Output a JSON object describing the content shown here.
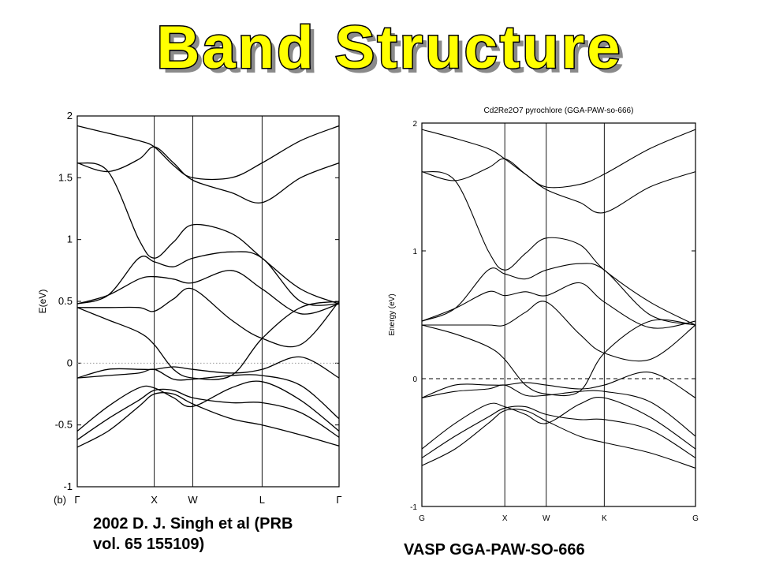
{
  "title": "Band Structure",
  "captions": {
    "left_line1": "2002 D. J. Singh et al (PRB",
    "left_line2": "vol. 65 155109)",
    "right": "VASP GGA-PAW-SO-666"
  },
  "colors": {
    "title_fill": "#ffff00",
    "title_stroke": "#000000",
    "title_shadow": "#8a8a8a",
    "band_line": "#000000"
  },
  "chart_data": [
    {
      "type": "line",
      "panel_label": "(b)",
      "title": "",
      "xlabel": "",
      "ylabel": "E(eV)",
      "ylim": [
        -1,
        2
      ],
      "yticks": [
        "-1",
        "-0.5",
        "0",
        "0.5",
        "1",
        "1.5",
        "2"
      ],
      "ytick_values": [
        -1,
        -0.5,
        0,
        0.5,
        1,
        1.5,
        2
      ],
      "x_points": [
        "Γ",
        "X",
        "W",
        "L",
        "Γ"
      ],
      "x_point_positions": [
        0,
        1,
        1.5,
        2.4,
        3.4
      ],
      "fermi_level": 0,
      "fermi_style": "dotted",
      "grid": false,
      "bands": [
        {
          "x": [
            0,
            0.4,
            0.8,
            1,
            1.25,
            1.5,
            2,
            2.4,
            2.9,
            3.4
          ],
          "y": [
            -0.68,
            -0.55,
            -0.35,
            -0.25,
            -0.25,
            -0.33,
            -0.45,
            -0.5,
            -0.58,
            -0.67
          ]
        },
        {
          "x": [
            0,
            0.4,
            0.8,
            1,
            1.25,
            1.5,
            2,
            2.4,
            2.9,
            3.4
          ],
          "y": [
            -0.62,
            -0.45,
            -0.3,
            -0.22,
            -0.22,
            -0.28,
            -0.32,
            -0.32,
            -0.4,
            -0.6
          ]
        },
        {
          "x": [
            0,
            0.4,
            0.8,
            1,
            1.25,
            1.5,
            2,
            2.4,
            2.9,
            3.4
          ],
          "y": [
            -0.55,
            -0.35,
            -0.2,
            -0.2,
            -0.28,
            -0.35,
            -0.2,
            -0.15,
            -0.3,
            -0.55
          ]
        },
        {
          "x": [
            0,
            0.4,
            0.8,
            1,
            1.25,
            1.5,
            2,
            2.4,
            2.9,
            3.4
          ],
          "y": [
            -0.12,
            -0.1,
            -0.08,
            -0.05,
            -0.13,
            -0.13,
            -0.1,
            -0.1,
            -0.18,
            -0.45
          ]
        },
        {
          "x": [
            0,
            0.4,
            0.8,
            1,
            1.25,
            1.5,
            2,
            2.4,
            2.9,
            3.4
          ],
          "y": [
            -0.12,
            -0.05,
            -0.05,
            -0.05,
            -0.03,
            -0.05,
            -0.08,
            -0.05,
            0.05,
            -0.12
          ]
        },
        {
          "x": [
            0,
            0.4,
            0.8,
            1,
            1.25,
            1.5,
            2,
            2.4,
            2.9,
            3.4
          ],
          "y": [
            0.45,
            0.35,
            0.25,
            0.15,
            -0.05,
            -0.12,
            -0.1,
            0.2,
            0.45,
            0.5
          ]
        },
        {
          "x": [
            0,
            0.4,
            0.8,
            1,
            1.25,
            1.5,
            2,
            2.4,
            2.9,
            3.4
          ],
          "y": [
            0.45,
            0.45,
            0.45,
            0.42,
            0.52,
            0.6,
            0.35,
            0.2,
            0.15,
            0.5
          ]
        },
        {
          "x": [
            0,
            0.4,
            0.8,
            1,
            1.25,
            1.5,
            2,
            2.4,
            2.9,
            3.4
          ],
          "y": [
            0.48,
            0.55,
            0.68,
            0.7,
            0.68,
            0.65,
            0.75,
            0.6,
            0.4,
            0.48
          ]
        },
        {
          "x": [
            0,
            0.4,
            0.8,
            1,
            1.25,
            1.5,
            2,
            2.4,
            2.9,
            3.4
          ],
          "y": [
            0.48,
            0.55,
            0.85,
            0.82,
            0.78,
            0.85,
            0.9,
            0.85,
            0.5,
            0.48
          ]
        },
        {
          "x": [
            0,
            0.4,
            0.8,
            1,
            1.25,
            1.5,
            2,
            2.4,
            2.9,
            3.4
          ],
          "y": [
            1.62,
            1.55,
            1.0,
            0.85,
            0.98,
            1.12,
            1.05,
            0.85,
            0.6,
            0.48
          ]
        },
        {
          "x": [
            0,
            0.4,
            0.8,
            1,
            1.25,
            1.5,
            2,
            2.4,
            2.9,
            3.4
          ],
          "y": [
            1.62,
            1.55,
            1.65,
            1.75,
            1.62,
            1.48,
            1.38,
            1.3,
            1.5,
            1.62
          ]
        },
        {
          "x": [
            0,
            0.4,
            0.8,
            1,
            1.25,
            1.5,
            2,
            2.4,
            2.9,
            3.4
          ],
          "y": [
            1.92,
            1.86,
            1.8,
            1.75,
            1.6,
            1.5,
            1.5,
            1.62,
            1.8,
            1.92
          ]
        }
      ]
    },
    {
      "type": "line",
      "title": "Cd2Re2O7 pyrochlore (GGA-PAW-so-666)",
      "xlabel": "",
      "ylabel": "Energy (eV)",
      "ylim": [
        -1,
        2
      ],
      "yticks": [
        "-1",
        "0",
        "1",
        "2"
      ],
      "ytick_values": [
        -1,
        0,
        1,
        2
      ],
      "x_points": [
        "G",
        "X",
        "W",
        "K",
        "G"
      ],
      "x_point_positions": [
        0,
        1,
        1.5,
        2.2,
        3.3
      ],
      "fermi_level": 0,
      "fermi_style": "dashed",
      "grid": false,
      "bands": [
        {
          "x": [
            0,
            0.4,
            0.8,
            1,
            1.25,
            1.5,
            1.9,
            2.2,
            2.75,
            3.3
          ],
          "y": [
            -0.68,
            -0.55,
            -0.35,
            -0.25,
            -0.25,
            -0.33,
            -0.45,
            -0.5,
            -0.58,
            -0.7
          ]
        },
        {
          "x": [
            0,
            0.4,
            0.8,
            1,
            1.25,
            1.5,
            1.9,
            2.2,
            2.75,
            3.3
          ],
          "y": [
            -0.62,
            -0.45,
            -0.3,
            -0.23,
            -0.22,
            -0.28,
            -0.32,
            -0.32,
            -0.4,
            -0.62
          ]
        },
        {
          "x": [
            0,
            0.4,
            0.8,
            1,
            1.25,
            1.5,
            1.9,
            2.2,
            2.75,
            3.3
          ],
          "y": [
            -0.55,
            -0.35,
            -0.2,
            -0.22,
            -0.28,
            -0.35,
            -0.2,
            -0.15,
            -0.3,
            -0.55
          ]
        },
        {
          "x": [
            0,
            0.4,
            0.8,
            1,
            1.25,
            1.5,
            1.9,
            2.2,
            2.75,
            3.3
          ],
          "y": [
            -0.15,
            -0.1,
            -0.08,
            -0.05,
            -0.13,
            -0.13,
            -0.1,
            -0.1,
            -0.18,
            -0.45
          ]
        },
        {
          "x": [
            0,
            0.4,
            0.8,
            1,
            1.25,
            1.5,
            1.9,
            2.2,
            2.75,
            3.3
          ],
          "y": [
            -0.15,
            -0.05,
            -0.05,
            -0.05,
            -0.03,
            -0.05,
            -0.08,
            -0.05,
            0.05,
            -0.15
          ]
        },
        {
          "x": [
            0,
            0.4,
            0.8,
            1,
            1.25,
            1.5,
            1.9,
            2.2,
            2.75,
            3.3
          ],
          "y": [
            0.42,
            0.35,
            0.25,
            0.15,
            -0.05,
            -0.12,
            -0.1,
            0.2,
            0.45,
            0.42
          ]
        },
        {
          "x": [
            0,
            0.4,
            0.8,
            1,
            1.25,
            1.5,
            1.9,
            2.2,
            2.75,
            3.3
          ],
          "y": [
            0.42,
            0.42,
            0.42,
            0.42,
            0.52,
            0.6,
            0.35,
            0.2,
            0.15,
            0.42
          ]
        },
        {
          "x": [
            0,
            0.4,
            0.8,
            1,
            1.25,
            1.5,
            1.9,
            2.2,
            2.75,
            3.3
          ],
          "y": [
            0.45,
            0.55,
            0.68,
            0.65,
            0.68,
            0.65,
            0.75,
            0.6,
            0.4,
            0.45
          ]
        },
        {
          "x": [
            0,
            0.4,
            0.8,
            1,
            1.25,
            1.5,
            1.9,
            2.2,
            2.75,
            3.3
          ],
          "y": [
            0.45,
            0.55,
            0.85,
            0.82,
            0.78,
            0.85,
            0.9,
            0.85,
            0.5,
            0.42
          ]
        },
        {
          "x": [
            0,
            0.4,
            0.8,
            1,
            1.25,
            1.5,
            1.9,
            2.2,
            2.75,
            3.3
          ],
          "y": [
            1.62,
            1.55,
            1.0,
            0.85,
            0.98,
            1.1,
            1.05,
            0.85,
            0.6,
            0.42
          ]
        },
        {
          "x": [
            0,
            0.4,
            0.8,
            1,
            1.25,
            1.5,
            1.9,
            2.2,
            2.75,
            3.3
          ],
          "y": [
            1.62,
            1.55,
            1.65,
            1.72,
            1.6,
            1.48,
            1.38,
            1.3,
            1.5,
            1.62
          ]
        },
        {
          "x": [
            0,
            0.4,
            0.8,
            1,
            1.25,
            1.5,
            1.9,
            2.2,
            2.75,
            3.3
          ],
          "y": [
            1.95,
            1.88,
            1.8,
            1.72,
            1.6,
            1.5,
            1.52,
            1.6,
            1.8,
            1.95
          ]
        }
      ]
    }
  ]
}
